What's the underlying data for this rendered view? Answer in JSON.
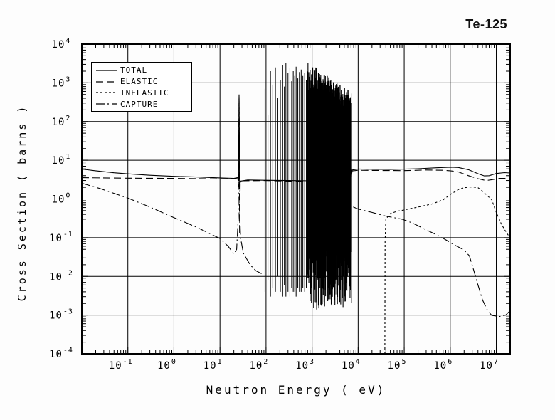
{
  "title": "Te-125",
  "chart_data": {
    "type": "line",
    "title": "Te-125",
    "xlabel": "Neutron Energy ( eV)",
    "ylabel": "Cross Section ( barns )",
    "x_scale": "log",
    "y_scale": "log",
    "xlim": [
      0.01,
      20000000
    ],
    "ylim": [
      0.0001,
      10000
    ],
    "x_tick_exponents": [
      -1,
      0,
      1,
      2,
      3,
      4,
      5,
      6,
      7
    ],
    "y_tick_exponents": [
      4,
      3,
      2,
      1,
      0,
      -1,
      -2,
      -3,
      -4
    ],
    "grid": true,
    "legend_position": "top-left",
    "line_color": "#000000",
    "series": [
      {
        "name": "TOTAL",
        "style": "solid",
        "segments": [
          [
            [
              0.01,
              5.9
            ],
            [
              0.02,
              5.35
            ],
            [
              0.05,
              4.75
            ],
            [
              0.1,
              4.45
            ],
            [
              0.3,
              4.1
            ],
            [
              1,
              3.85
            ],
            [
              3,
              3.7
            ],
            [
              10,
              3.5
            ],
            [
              20,
              3.42
            ],
            [
              25.2,
              3.6
            ],
            [
              26,
              500
            ],
            [
              26.8,
              2.2
            ],
            [
              28,
              2.9
            ],
            [
              40,
              3.1
            ],
            [
              90,
              3.05
            ],
            [
              300,
              3.0
            ],
            [
              1000,
              2.95
            ],
            [
              3000,
              2.9
            ],
            [
              7000,
              3.0
            ],
            [
              7400,
              5.6
            ],
            [
              10000,
              5.95
            ],
            [
              20000,
              5.85
            ],
            [
              50000,
              5.8
            ],
            [
              100000,
              5.9
            ],
            [
              200000,
              6.05
            ],
            [
              500000,
              6.4
            ],
            [
              1000000,
              6.6
            ],
            [
              1500000,
              6.5
            ],
            [
              2500000,
              5.7
            ],
            [
              4000000,
              4.5
            ],
            [
              5500000,
              3.95
            ],
            [
              7000000,
              4.0
            ],
            [
              10000000,
              4.55
            ],
            [
              15000000,
              4.8
            ],
            [
              20000000,
              4.7
            ]
          ]
        ]
      },
      {
        "name": "ELASTIC",
        "style": "long-dash",
        "segments": [
          [
            [
              0.01,
              3.55
            ],
            [
              0.1,
              3.45
            ],
            [
              1,
              3.4
            ],
            [
              10,
              3.3
            ],
            [
              24,
              3.35
            ],
            [
              25.5,
              2.0
            ],
            [
              26,
              450
            ],
            [
              26.6,
              0.12
            ],
            [
              27.5,
              2.4
            ],
            [
              30,
              2.95
            ],
            [
              90,
              3.0
            ],
            [
              300,
              2.9
            ],
            [
              1000,
              2.85
            ],
            [
              3000,
              2.8
            ],
            [
              7000,
              2.9
            ],
            [
              7400,
              5.3
            ],
            [
              10000,
              5.5
            ],
            [
              30000,
              5.45
            ],
            [
              100000,
              5.4
            ],
            [
              300000,
              5.6
            ],
            [
              700000,
              5.5
            ],
            [
              1000000,
              5.35
            ],
            [
              1500000,
              5.0
            ],
            [
              2500000,
              4.0
            ],
            [
              4000000,
              3.35
            ],
            [
              6000000,
              3.0
            ],
            [
              8000000,
              3.15
            ],
            [
              12000000,
              3.4
            ],
            [
              20000000,
              3.4
            ]
          ]
        ]
      },
      {
        "name": "INELASTIC",
        "style": "short-dash",
        "segments": [
          [
            [
              38000,
              0.0001
            ],
            [
              38500,
              0.08
            ],
            [
              40000,
              0.3
            ],
            [
              50000,
              0.42
            ],
            [
              70000,
              0.48
            ],
            [
              100000,
              0.52
            ],
            [
              200000,
              0.62
            ],
            [
              400000,
              0.74
            ],
            [
              700000,
              0.95
            ],
            [
              1000000,
              1.3
            ],
            [
              1500000,
              1.75
            ],
            [
              2000000,
              1.95
            ],
            [
              3000000,
              2.05
            ],
            [
              4000000,
              1.95
            ],
            [
              5000000,
              1.6
            ],
            [
              6500000,
              1.2
            ],
            [
              8000000,
              0.95
            ],
            [
              10000000,
              0.45
            ],
            [
              13000000,
              0.22
            ],
            [
              17000000,
              0.13
            ],
            [
              20000000,
              0.1
            ]
          ]
        ]
      },
      {
        "name": "CAPTURE",
        "style": "dash-dot",
        "segments": [
          [
            [
              0.01,
              2.55
            ],
            [
              0.0253,
              1.85
            ],
            [
              0.1,
              1.05
            ],
            [
              0.3,
              0.62
            ],
            [
              1,
              0.33
            ],
            [
              3,
              0.19
            ],
            [
              10,
              0.095
            ],
            [
              15,
              0.06
            ],
            [
              20,
              0.038
            ],
            [
              23,
              0.05
            ],
            [
              25,
              0.35
            ],
            [
              26,
              400
            ],
            [
              27,
              0.4
            ],
            [
              28,
              0.1
            ],
            [
              32,
              0.04
            ],
            [
              45,
              0.02
            ],
            [
              60,
              0.014
            ],
            [
              90,
              0.011
            ]
          ],
          [
            [
              7800,
              0.62
            ],
            [
              10000,
              0.55
            ],
            [
              20000,
              0.45
            ],
            [
              40000,
              0.36
            ],
            [
              90000,
              0.3
            ],
            [
              150000,
              0.24
            ],
            [
              300000,
              0.16
            ],
            [
              500000,
              0.12
            ],
            [
              800000,
              0.088
            ],
            [
              1200000,
              0.066
            ],
            [
              2000000,
              0.048
            ],
            [
              2600000,
              0.034
            ],
            [
              3200000,
              0.015
            ],
            [
              4000000,
              0.006
            ],
            [
              5000000,
              0.0025
            ],
            [
              6500000,
              0.0013
            ],
            [
              8000000,
              0.00098
            ],
            [
              12000000,
              0.00092
            ],
            [
              16000000,
              0.001
            ],
            [
              20000000,
              0.0013
            ]
          ]
        ]
      }
    ],
    "resonance_spikes": [
      [
        95,
        700,
        0.004
      ],
      [
        110,
        150,
        0.008
      ],
      [
        125,
        2000,
        0.003
      ],
      [
        140,
        900,
        0.005
      ],
      [
        160,
        2500,
        0.004
      ],
      [
        180,
        400,
        0.01
      ],
      [
        205,
        1200,
        0.004
      ],
      [
        230,
        2800,
        0.003
      ],
      [
        250,
        800,
        0.006
      ],
      [
        270,
        3300,
        0.003
      ],
      [
        300,
        1800,
        0.004
      ],
      [
        330,
        2400,
        0.003
      ],
      [
        360,
        1100,
        0.005
      ],
      [
        390,
        2000,
        0.004
      ],
      [
        420,
        1500,
        0.004
      ],
      [
        450,
        2600,
        0.003
      ],
      [
        490,
        1300,
        0.005
      ],
      [
        530,
        1900,
        0.004
      ],
      [
        580,
        2200,
        0.004
      ],
      [
        630,
        1500,
        0.005
      ],
      [
        690,
        1800,
        0.004
      ],
      [
        750,
        1200,
        0.005
      ]
    ],
    "resonance_bands": [
      {
        "e_min": 780,
        "e_max": 1400,
        "count": 28,
        "top_start": 1600,
        "top_end": 1100,
        "top_jitter": 0.45,
        "bottom_center": 0.008,
        "bottom_jitter": 0.8,
        "seed": 11
      },
      {
        "e_min": 1400,
        "e_max": 7200,
        "count": 170,
        "top_start": 1050,
        "top_end": 300,
        "top_jitter": 0.3,
        "bottom_center": 0.01,
        "bottom_jitter": 0.8,
        "seed": 42
      }
    ]
  }
}
